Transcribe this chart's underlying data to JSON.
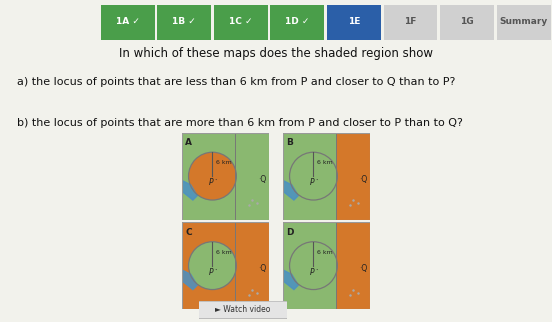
{
  "bg_color": "#f2f2ec",
  "tab_bar": {
    "tabs": [
      "1A",
      "1B",
      "1C",
      "1D",
      "1E",
      "1F",
      "1G",
      "Summary"
    ],
    "active": "1E",
    "completed": [
      "1A",
      "1B",
      "1C",
      "1D"
    ],
    "active_color": "#2b5fa8",
    "completed_color": "#4a9e4a",
    "inactive_color": "#d0d0d0",
    "text_color_active": "#ffffff",
    "text_color_completed": "#ffffff",
    "text_color_inactive": "#555555"
  },
  "title": "In which of these maps does the shaded region show",
  "question_a": "a) the locus of points that are less than 6 km from P and closer to Q than to P?",
  "question_b": "b) the locus of points that are more than 6 km from P and closer to P than to Q?",
  "orange_color": "#d4782a",
  "green_color": "#8ab870",
  "blue_water": "#4a90c4",
  "circle_color": "#777777",
  "km_label": "6 km",
  "watch_label": "► Watch video"
}
